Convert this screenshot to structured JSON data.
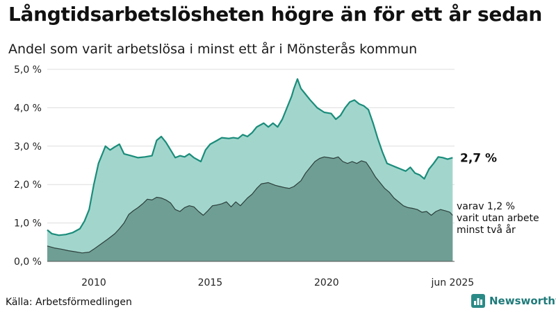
{
  "header": {
    "title": "Långtidsarbetslösheten högre än för ett år sedan",
    "subtitle": "Andel som varit arbetslösa i minst ett år i Mönsterås kommun"
  },
  "footer": {
    "source": "Källa: Arbetsförmedlingen",
    "brand": "Newsworthy"
  },
  "colors": {
    "series1_fill": "#a2d6cd",
    "series1_line": "#1a8c7a",
    "series2_fill": "#6f9e94",
    "series2_line": "#2b3f3b",
    "grid": "#dddddd"
  },
  "chart_data": {
    "type": "area",
    "x_range": [
      2008.0,
      2025.5
    ],
    "ylim": [
      0,
      5.0
    ],
    "y_ticks": [
      "0,0 %",
      "1,0 %",
      "2,0 %",
      "3,0 %",
      "4,0 %",
      "5,0 %"
    ],
    "y_tick_values": [
      0,
      1,
      2,
      3,
      4,
      5
    ],
    "x_ticks": [
      "2010",
      "2015",
      "2020",
      "jun 2025"
    ],
    "x_tick_values": [
      2010,
      2015,
      2020,
      2025.42
    ],
    "grid": true,
    "series": [
      {
        "points": [
          [
            2008.0,
            0.82
          ],
          [
            2008.2,
            0.72
          ],
          [
            2008.5,
            0.68
          ],
          [
            2008.8,
            0.7
          ],
          [
            2009.1,
            0.75
          ],
          [
            2009.4,
            0.85
          ],
          [
            2009.6,
            1.05
          ],
          [
            2009.8,
            1.35
          ],
          [
            2010.0,
            2.0
          ],
          [
            2010.2,
            2.55
          ],
          [
            2010.4,
            2.85
          ],
          [
            2010.5,
            3.0
          ],
          [
            2010.7,
            2.9
          ],
          [
            2010.9,
            2.98
          ],
          [
            2011.1,
            3.05
          ],
          [
            2011.3,
            2.8
          ],
          [
            2011.6,
            2.75
          ],
          [
            2011.9,
            2.7
          ],
          [
            2012.2,
            2.72
          ],
          [
            2012.5,
            2.75
          ],
          [
            2012.7,
            3.15
          ],
          [
            2012.9,
            3.25
          ],
          [
            2013.1,
            3.1
          ],
          [
            2013.3,
            2.9
          ],
          [
            2013.5,
            2.7
          ],
          [
            2013.7,
            2.75
          ],
          [
            2013.9,
            2.72
          ],
          [
            2014.1,
            2.8
          ],
          [
            2014.3,
            2.7
          ],
          [
            2014.6,
            2.6
          ],
          [
            2014.8,
            2.9
          ],
          [
            2015.0,
            3.05
          ],
          [
            2015.3,
            3.15
          ],
          [
            2015.5,
            3.22
          ],
          [
            2015.8,
            3.2
          ],
          [
            2016.0,
            3.22
          ],
          [
            2016.2,
            3.2
          ],
          [
            2016.4,
            3.3
          ],
          [
            2016.6,
            3.25
          ],
          [
            2016.8,
            3.35
          ],
          [
            2017.0,
            3.5
          ],
          [
            2017.3,
            3.6
          ],
          [
            2017.5,
            3.5
          ],
          [
            2017.7,
            3.6
          ],
          [
            2017.9,
            3.5
          ],
          [
            2018.1,
            3.7
          ],
          [
            2018.3,
            4.0
          ],
          [
            2018.5,
            4.3
          ],
          [
            2018.6,
            4.5
          ],
          [
            2018.75,
            4.75
          ],
          [
            2018.9,
            4.5
          ],
          [
            2019.1,
            4.35
          ],
          [
            2019.3,
            4.2
          ],
          [
            2019.6,
            4.0
          ],
          [
            2019.9,
            3.88
          ],
          [
            2020.2,
            3.85
          ],
          [
            2020.4,
            3.7
          ],
          [
            2020.6,
            3.8
          ],
          [
            2020.8,
            4.0
          ],
          [
            2021.0,
            4.15
          ],
          [
            2021.2,
            4.2
          ],
          [
            2021.4,
            4.1
          ],
          [
            2021.6,
            4.05
          ],
          [
            2021.8,
            3.95
          ],
          [
            2022.0,
            3.6
          ],
          [
            2022.2,
            3.2
          ],
          [
            2022.4,
            2.85
          ],
          [
            2022.6,
            2.55
          ],
          [
            2022.8,
            2.5
          ],
          [
            2023.0,
            2.45
          ],
          [
            2023.2,
            2.4
          ],
          [
            2023.4,
            2.35
          ],
          [
            2023.6,
            2.45
          ],
          [
            2023.8,
            2.3
          ],
          [
            2024.0,
            2.25
          ],
          [
            2024.2,
            2.15
          ],
          [
            2024.4,
            2.4
          ],
          [
            2024.6,
            2.55
          ],
          [
            2024.8,
            2.72
          ],
          [
            2025.0,
            2.7
          ],
          [
            2025.2,
            2.66
          ],
          [
            2025.42,
            2.7
          ]
        ]
      },
      {
        "points": [
          [
            2008.0,
            0.4
          ],
          [
            2008.3,
            0.35
          ],
          [
            2008.6,
            0.32
          ],
          [
            2008.9,
            0.28
          ],
          [
            2009.2,
            0.25
          ],
          [
            2009.5,
            0.22
          ],
          [
            2009.8,
            0.24
          ],
          [
            2010.0,
            0.32
          ],
          [
            2010.3,
            0.45
          ],
          [
            2010.6,
            0.58
          ],
          [
            2010.9,
            0.72
          ],
          [
            2011.1,
            0.85
          ],
          [
            2011.3,
            1.0
          ],
          [
            2011.5,
            1.22
          ],
          [
            2011.7,
            1.32
          ],
          [
            2011.9,
            1.4
          ],
          [
            2012.1,
            1.5
          ],
          [
            2012.3,
            1.62
          ],
          [
            2012.5,
            1.6
          ],
          [
            2012.7,
            1.67
          ],
          [
            2012.9,
            1.65
          ],
          [
            2013.1,
            1.6
          ],
          [
            2013.3,
            1.52
          ],
          [
            2013.5,
            1.35
          ],
          [
            2013.7,
            1.3
          ],
          [
            2013.9,
            1.4
          ],
          [
            2014.1,
            1.45
          ],
          [
            2014.3,
            1.42
          ],
          [
            2014.5,
            1.3
          ],
          [
            2014.7,
            1.2
          ],
          [
            2014.9,
            1.32
          ],
          [
            2015.1,
            1.45
          ],
          [
            2015.3,
            1.47
          ],
          [
            2015.5,
            1.5
          ],
          [
            2015.7,
            1.55
          ],
          [
            2015.9,
            1.42
          ],
          [
            2016.1,
            1.55
          ],
          [
            2016.3,
            1.45
          ],
          [
            2016.6,
            1.65
          ],
          [
            2016.8,
            1.75
          ],
          [
            2017.0,
            1.9
          ],
          [
            2017.2,
            2.02
          ],
          [
            2017.5,
            2.05
          ],
          [
            2017.8,
            1.98
          ],
          [
            2018.0,
            1.95
          ],
          [
            2018.2,
            1.92
          ],
          [
            2018.4,
            1.9
          ],
          [
            2018.6,
            1.95
          ],
          [
            2018.9,
            2.1
          ],
          [
            2019.1,
            2.3
          ],
          [
            2019.3,
            2.45
          ],
          [
            2019.5,
            2.6
          ],
          [
            2019.7,
            2.68
          ],
          [
            2019.9,
            2.72
          ],
          [
            2020.1,
            2.7
          ],
          [
            2020.3,
            2.68
          ],
          [
            2020.5,
            2.72
          ],
          [
            2020.7,
            2.6
          ],
          [
            2020.9,
            2.55
          ],
          [
            2021.1,
            2.6
          ],
          [
            2021.3,
            2.55
          ],
          [
            2021.5,
            2.62
          ],
          [
            2021.7,
            2.58
          ],
          [
            2021.9,
            2.4
          ],
          [
            2022.1,
            2.2
          ],
          [
            2022.3,
            2.05
          ],
          [
            2022.5,
            1.9
          ],
          [
            2022.7,
            1.8
          ],
          [
            2022.9,
            1.65
          ],
          [
            2023.1,
            1.55
          ],
          [
            2023.3,
            1.45
          ],
          [
            2023.5,
            1.4
          ],
          [
            2023.7,
            1.38
          ],
          [
            2023.9,
            1.35
          ],
          [
            2024.1,
            1.28
          ],
          [
            2024.3,
            1.3
          ],
          [
            2024.5,
            1.2
          ],
          [
            2024.7,
            1.3
          ],
          [
            2024.9,
            1.35
          ],
          [
            2025.1,
            1.32
          ],
          [
            2025.3,
            1.28
          ],
          [
            2025.42,
            1.2
          ]
        ]
      }
    ],
    "annotations": {
      "latest_total": "2,7 %",
      "latest_long_lines": [
        "varav 1,2 %",
        "varit utan arbete",
        "minst två år"
      ]
    }
  }
}
